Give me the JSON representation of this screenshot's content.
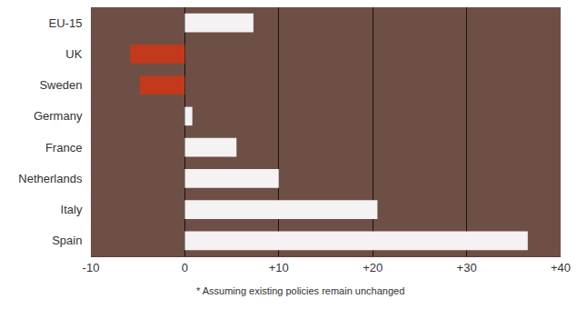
{
  "chart_data": {
    "type": "bar",
    "orientation": "horizontal",
    "categories": [
      "EU-15",
      "UK",
      "Sweden",
      "Germany",
      "France",
      "Netherlands",
      "Italy",
      "Spain"
    ],
    "values": [
      7.3,
      -5.8,
      -4.8,
      0.8,
      5.5,
      10,
      20.5,
      36.5
    ],
    "colors": [
      "#f4f2f2",
      "#c2391c",
      "#c2391c",
      "#f4f2f2",
      "#f4f2f2",
      "#f4f2f2",
      "#f4f2f2",
      "#f4f2f2"
    ],
    "xlim": [
      -10,
      40
    ],
    "xticks": [
      -10,
      0,
      {
        "value": 10,
        "label": "+10"
      },
      {
        "value": 20,
        "label": "+20"
      },
      {
        "value": 30,
        "label": "+30"
      },
      {
        "value": 40,
        "label": "+40"
      }
    ],
    "grid": true,
    "annotations": [
      "* Assuming existing policies remain unchanged"
    ]
  }
}
